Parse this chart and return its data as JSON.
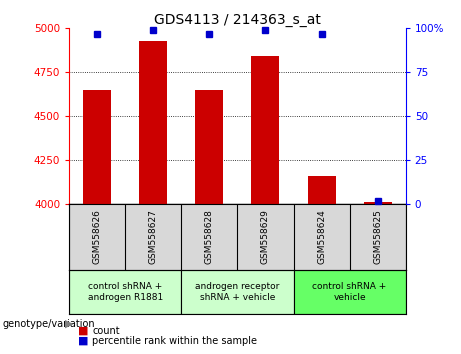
{
  "title": "GDS4113 / 214363_s_at",
  "samples": [
    "GSM558626",
    "GSM558627",
    "GSM558628",
    "GSM558629",
    "GSM558624",
    "GSM558625"
  ],
  "counts": [
    4650,
    4930,
    4650,
    4840,
    4160,
    4010
  ],
  "percentile_ranks": [
    97,
    99,
    97,
    99,
    97,
    2
  ],
  "groups": [
    {
      "label": "control shRNA +\nandrogen R1881",
      "color": "#ccffcc"
    },
    {
      "label": "androgen receptor\nshRNA + vehicle",
      "color": "#ccffcc"
    },
    {
      "label": "control shRNA +\nvehicle",
      "color": "#66ff66"
    }
  ],
  "group_colors": [
    "#ccffcc",
    "#ccffcc",
    "#66ff66"
  ],
  "group_ranges": [
    [
      0,
      1
    ],
    [
      2,
      3
    ],
    [
      4,
      5
    ]
  ],
  "ylim_left": [
    4000,
    5000
  ],
  "ylim_right": [
    0,
    100
  ],
  "yticks_left": [
    4000,
    4250,
    4500,
    4750,
    5000
  ],
  "yticks_right": [
    0,
    25,
    50,
    75,
    100
  ],
  "ytick_right_labels": [
    "0",
    "25",
    "50",
    "75",
    "100%"
  ],
  "bar_color": "#cc0000",
  "dot_color": "#0000cc",
  "bar_width": 0.5,
  "bg_color_plot": "#ffffff",
  "bg_color_label": "#d8d8d8",
  "grid_color": "#000000",
  "legend_items": [
    {
      "color": "#cc0000",
      "label": "count"
    },
    {
      "color": "#0000cc",
      "label": "percentile rank within the sample"
    }
  ]
}
